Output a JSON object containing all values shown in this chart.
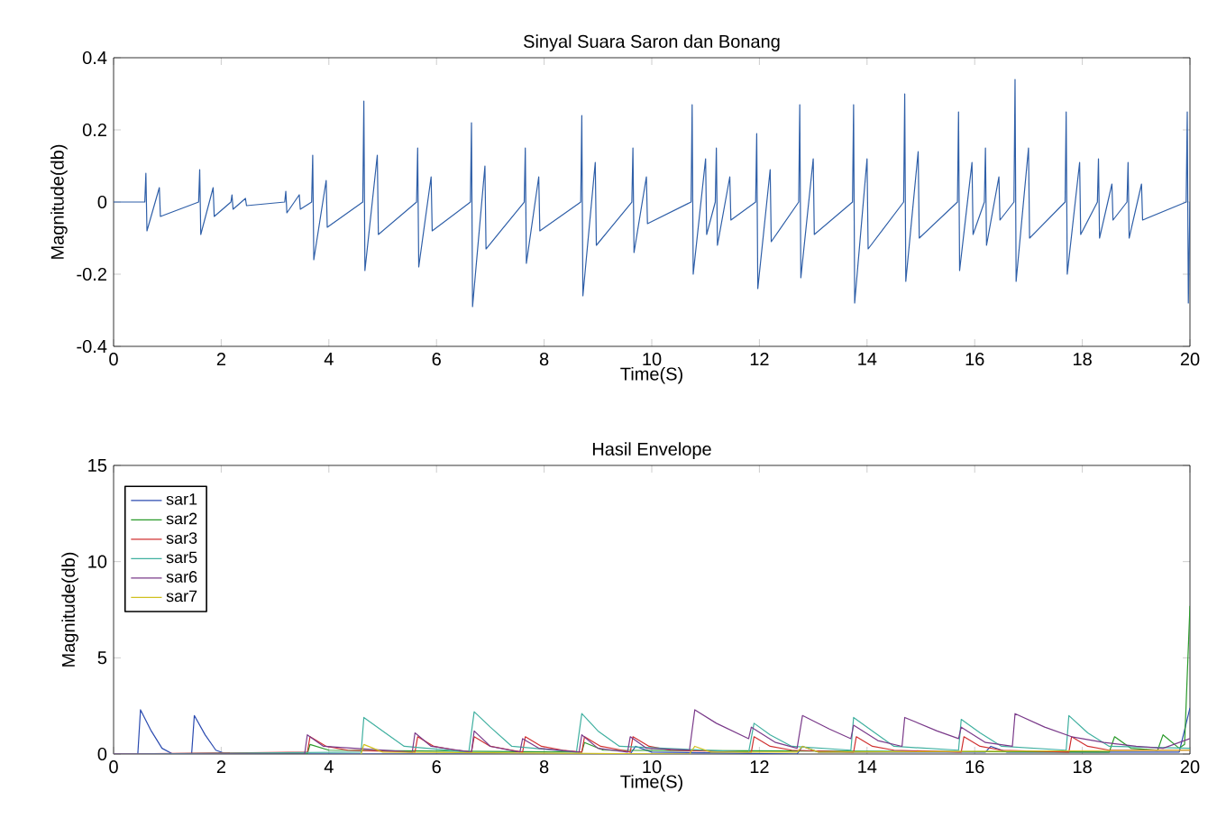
{
  "chart_data": [
    {
      "type": "line",
      "title": "Sinyal Suara Saron dan Bonang",
      "xlabel": "Time(S)",
      "ylabel": "Magnitude(db)",
      "color": "#2f5fa8",
      "x": [
        0,
        0.58,
        0.6,
        0.62,
        0.85,
        0.87,
        1.58,
        1.6,
        1.62,
        1.85,
        1.87,
        2.18,
        2.2,
        2.22,
        2.45,
        2.47,
        3.18,
        3.2,
        3.22,
        3.45,
        3.47,
        3.68,
        3.7,
        3.72,
        3.95,
        3.97,
        4.63,
        4.65,
        4.67,
        4.9,
        4.92,
        5.63,
        5.65,
        5.67,
        5.9,
        5.92,
        6.63,
        6.65,
        6.67,
        6.9,
        6.92,
        7.63,
        7.65,
        7.67,
        7.9,
        7.92,
        8.68,
        8.7,
        8.72,
        8.95,
        8.97,
        9.63,
        9.65,
        9.67,
        9.9,
        9.92,
        10.73,
        10.75,
        10.77,
        11.0,
        11.02,
        11.18,
        11.2,
        11.22,
        11.45,
        11.47,
        11.93,
        11.95,
        11.97,
        12.2,
        12.22,
        12.73,
        12.75,
        12.77,
        13.0,
        13.02,
        13.73,
        13.75,
        13.77,
        14.0,
        14.02,
        14.68,
        14.7,
        14.72,
        14.95,
        14.97,
        15.68,
        15.7,
        15.72,
        15.95,
        15.97,
        16.18,
        16.2,
        16.22,
        16.45,
        16.47,
        16.73,
        16.75,
        16.77,
        17.0,
        17.02,
        17.68,
        17.7,
        17.72,
        17.95,
        17.97,
        18.28,
        18.3,
        18.32,
        18.55,
        18.57,
        18.83,
        18.85,
        18.87,
        19.1,
        19.12,
        19.93,
        19.95,
        19.97,
        20
      ],
      "values": [
        0,
        0,
        0.08,
        -0.08,
        0.04,
        -0.04,
        0,
        0.09,
        -0.09,
        0.04,
        -0.04,
        0,
        0.02,
        -0.02,
        0.01,
        -0.01,
        0,
        0.03,
        -0.03,
        0.02,
        -0.02,
        0,
        0.13,
        -0.16,
        0.06,
        -0.07,
        0,
        0.28,
        -0.19,
        0.13,
        -0.09,
        0,
        0.15,
        -0.18,
        0.07,
        -0.08,
        0,
        0.22,
        -0.29,
        0.1,
        -0.13,
        0,
        0.15,
        -0.17,
        0.07,
        -0.08,
        0,
        0.24,
        -0.26,
        0.11,
        -0.12,
        0,
        0.15,
        -0.14,
        0.07,
        -0.06,
        0,
        0.27,
        -0.2,
        0.12,
        -0.09,
        0,
        0.15,
        -0.12,
        0.07,
        -0.05,
        0,
        0.19,
        -0.24,
        0.09,
        -0.11,
        0,
        0.27,
        -0.21,
        0.12,
        -0.09,
        0,
        0.27,
        -0.28,
        0.12,
        -0.13,
        0,
        0.3,
        -0.22,
        0.14,
        -0.1,
        0,
        0.25,
        -0.19,
        0.11,
        -0.09,
        0,
        0.15,
        -0.12,
        0.07,
        -0.05,
        0,
        0.34,
        -0.22,
        0.15,
        -0.1,
        0,
        0.25,
        -0.2,
        0.11,
        -0.09,
        0,
        0.12,
        -0.1,
        0.05,
        -0.05,
        0,
        0.11,
        -0.1,
        0.05,
        -0.05,
        0,
        0.25,
        -0.28,
        0
      ],
      "xlim": [
        0,
        20
      ],
      "ylim": [
        -0.4,
        0.4
      ],
      "xticks": [
        0,
        2,
        4,
        6,
        8,
        10,
        12,
        14,
        16,
        18,
        20
      ],
      "yticks": [
        -0.4,
        -0.2,
        0,
        0.2,
        0.4
      ]
    },
    {
      "type": "line",
      "title": "Hasil Envelope",
      "xlabel": "Time(S)",
      "ylabel": "Magnitude(db)",
      "legend": "top left",
      "xlim": [
        0,
        20
      ],
      "ylim": [
        0,
        15
      ],
      "xticks": [
        0,
        2,
        4,
        6,
        8,
        10,
        12,
        14,
        16,
        18,
        20
      ],
      "yticks": [
        0,
        5,
        10,
        15
      ],
      "series": [
        {
          "name": "sar1",
          "color": "#2b4bb0",
          "x": [
            0,
            0.45,
            0.5,
            0.7,
            0.9,
            1.1,
            1.45,
            1.5,
            1.7,
            1.9,
            2.1,
            9.6,
            9.7,
            10.0,
            12.7,
            12.8,
            13.1,
            16.2,
            16.3,
            16.6,
            19.8,
            20
          ],
          "values": [
            0,
            0,
            2.3,
            1.2,
            0.3,
            0,
            0,
            2.0,
            1.0,
            0.2,
            0,
            0,
            0.4,
            0.1,
            0,
            0.4,
            0.1,
            0.1,
            0.4,
            0.1,
            0.1,
            2.4
          ]
        },
        {
          "name": "sar2",
          "color": "#2a9a2a",
          "x": [
            0,
            3.6,
            3.65,
            4.0,
            8.7,
            8.75,
            9.1,
            18.5,
            18.6,
            18.9,
            19.4,
            19.5,
            19.8,
            19.9,
            20
          ],
          "values": [
            0,
            0,
            0.5,
            0.2,
            0.1,
            0.6,
            0.2,
            0.1,
            0.9,
            0.3,
            0.2,
            1.0,
            0.3,
            0.5,
            7.7
          ]
        },
        {
          "name": "sar3",
          "color": "#d03030",
          "x": [
            0,
            3.6,
            3.65,
            3.95,
            4.35,
            5.6,
            5.65,
            5.95,
            6.35,
            6.65,
            6.7,
            7.0,
            7.4,
            7.6,
            7.65,
            7.95,
            8.35,
            8.7,
            8.75,
            9.05,
            9.45,
            9.6,
            9.65,
            9.95,
            10.35,
            11.85,
            11.9,
            12.2,
            12.6,
            13.75,
            13.8,
            14.1,
            14.5,
            15.75,
            15.8,
            16.1,
            16.5,
            17.75,
            17.8,
            18.1,
            18.5,
            20
          ],
          "values": [
            0,
            0.1,
            0.9,
            0.4,
            0.2,
            0.1,
            0.9,
            0.4,
            0.2,
            0.1,
            0.9,
            0.4,
            0.2,
            0.1,
            0.9,
            0.4,
            0.2,
            0.1,
            0.9,
            0.4,
            0.2,
            0.1,
            0.9,
            0.4,
            0.2,
            0.1,
            0.9,
            0.4,
            0.2,
            0.1,
            0.9,
            0.4,
            0.2,
            0.1,
            0.9,
            0.4,
            0.2,
            0.1,
            0.9,
            0.4,
            0.2,
            0.2
          ]
        },
        {
          "name": "sar5",
          "color": "#40b0a0",
          "x": [
            0,
            4.6,
            4.65,
            5.0,
            5.4,
            6.6,
            6.7,
            7.0,
            7.4,
            8.6,
            8.7,
            9.0,
            9.4,
            11.8,
            11.9,
            12.2,
            12.6,
            13.7,
            13.75,
            14.1,
            14.5,
            15.7,
            15.75,
            16.1,
            16.5,
            17.7,
            17.75,
            18.1,
            18.5,
            20
          ],
          "values": [
            0,
            0.1,
            1.9,
            1.2,
            0.4,
            0.1,
            2.2,
            1.4,
            0.4,
            0.1,
            2.1,
            1.2,
            0.4,
            0.1,
            1.6,
            1.0,
            0.4,
            0.2,
            1.9,
            1.2,
            0.4,
            0.2,
            1.8,
            1.1,
            0.4,
            0.2,
            2.0,
            1.1,
            0.4,
            0.3
          ]
        },
        {
          "name": "sar6",
          "color": "#7a3a8a",
          "x": [
            0,
            3.55,
            3.6,
            3.9,
            5.55,
            5.6,
            5.9,
            6.65,
            6.7,
            7.0,
            7.55,
            7.6,
            7.9,
            8.65,
            8.7,
            9.0,
            9.55,
            9.6,
            9.9,
            10.7,
            10.8,
            11.2,
            11.8,
            11.85,
            12.3,
            12.7,
            12.8,
            13.3,
            13.7,
            13.75,
            14.2,
            14.65,
            14.7,
            15.3,
            15.7,
            15.75,
            16.2,
            16.7,
            16.75,
            17.3,
            17.8,
            18.4,
            19.0,
            19.5,
            20
          ],
          "values": [
            0,
            0,
            1.0,
            0.4,
            0.1,
            1.1,
            0.4,
            0.1,
            1.2,
            0.4,
            0.1,
            0.8,
            0.3,
            0.1,
            1.0,
            0.3,
            0.1,
            0.9,
            0.3,
            0.2,
            2.3,
            1.6,
            0.8,
            1.4,
            0.6,
            0.3,
            2.0,
            1.3,
            0.8,
            1.5,
            0.7,
            0.4,
            1.9,
            1.2,
            0.8,
            1.4,
            0.6,
            0.4,
            2.1,
            1.4,
            0.9,
            0.6,
            0.4,
            0.3,
            0.8
          ]
        },
        {
          "name": "sar7",
          "color": "#d0c020",
          "x": [
            4.6,
            4.65,
            5.0,
            10.7,
            10.8,
            11.1,
            12.7,
            12.8,
            13.1,
            20
          ],
          "values": [
            0,
            0.5,
            0.1,
            0,
            0.4,
            0.1,
            0.1,
            0.4,
            0.1,
            0.2
          ]
        }
      ]
    }
  ]
}
